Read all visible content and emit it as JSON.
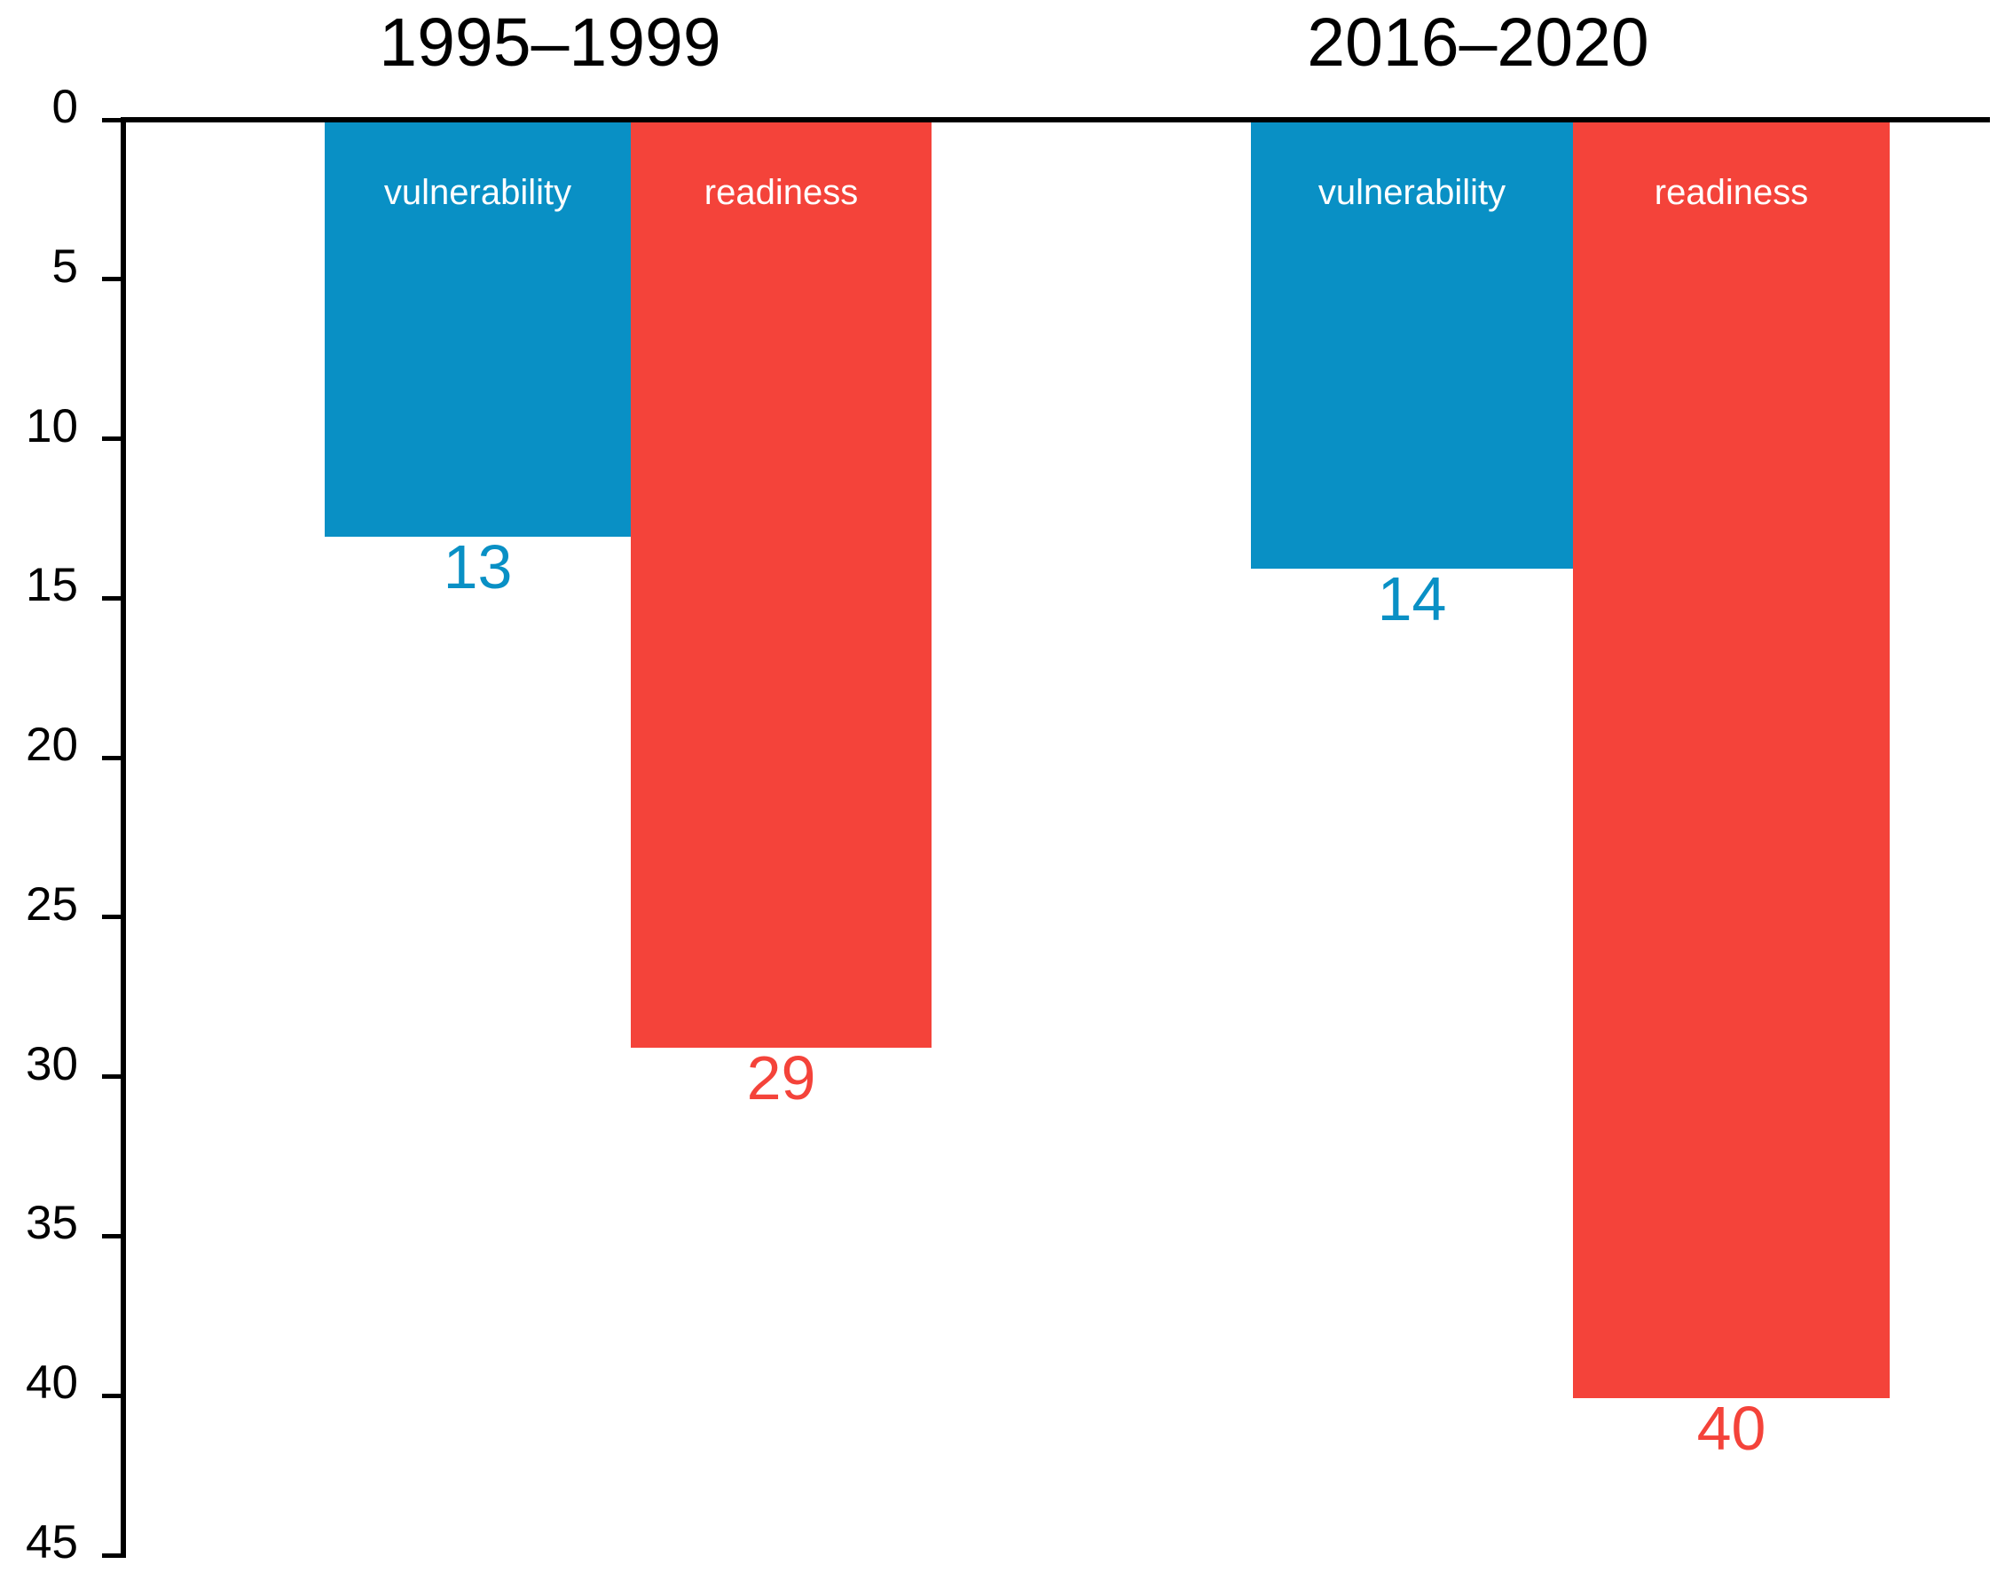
{
  "chart_data": {
    "type": "bar",
    "title": "",
    "xlabel": "",
    "ylabel": "",
    "orientation": "vertical bars hanging downward from zero baseline at top",
    "ylim": [
      0,
      45
    ],
    "yticks": [
      0,
      5,
      10,
      15,
      20,
      25,
      30,
      35,
      40,
      45
    ],
    "grid": false,
    "legend_position": "series labels printed inside bars",
    "background_color": "#ffffff",
    "axis_color": "#000000",
    "in_bar_label_color": "#ffffff",
    "series_colors": {
      "vulnerability": "#0990c5",
      "readiness": "#f4433a"
    },
    "groups": [
      {
        "title": "1995–1999",
        "bars": [
          {
            "label": "vulnerability",
            "value": 13,
            "color": "#0990c5"
          },
          {
            "label": "readiness",
            "value": 29,
            "color": "#f4433a"
          }
        ]
      },
      {
        "title": "2016–2020",
        "bars": [
          {
            "label": "vulnerability",
            "value": 14,
            "color": "#0990c5"
          },
          {
            "label": "readiness",
            "value": 40,
            "color": "#f4433a"
          }
        ]
      }
    ]
  }
}
